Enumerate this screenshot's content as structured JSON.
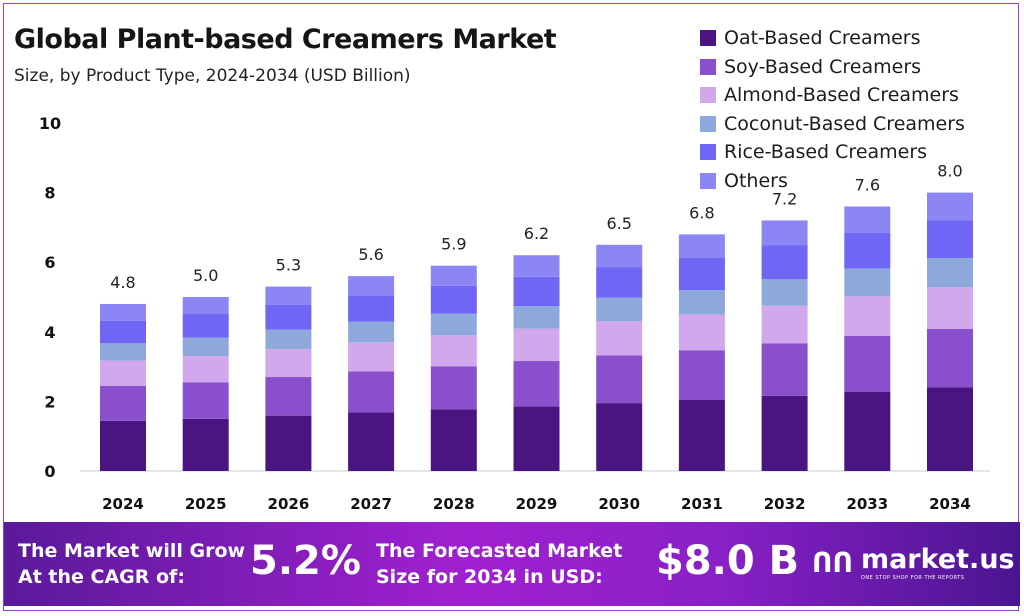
{
  "chart_data": {
    "type": "bar",
    "stacked": true,
    "title": "Global Plant-based Creamers Market",
    "subtitle": "Size, by Product Type, 2024-2034 (USD Billion)",
    "xlabel": "",
    "ylabel": "",
    "ylim": [
      0,
      10
    ],
    "yticks": [
      0,
      2,
      4,
      6,
      8,
      10
    ],
    "grid": false,
    "legend_position": "top-right",
    "categories": [
      "2024",
      "2025",
      "2026",
      "2027",
      "2028",
      "2029",
      "2030",
      "2031",
      "2032",
      "2033",
      "2034"
    ],
    "totals": [
      "4.8",
      "5.0",
      "5.3",
      "5.6",
      "5.9",
      "6.2",
      "6.5",
      "6.8",
      "7.2",
      "7.6",
      "8.0"
    ],
    "series": [
      {
        "name": "Oat-Based Creamers",
        "color": "#4a1580",
        "values": [
          1.44,
          1.5,
          1.59,
          1.68,
          1.77,
          1.86,
          1.95,
          2.04,
          2.16,
          2.28,
          2.4
        ]
      },
      {
        "name": "Soy-Based Creamers",
        "color": "#8a4fcc",
        "values": [
          1.01,
          1.05,
          1.11,
          1.18,
          1.24,
          1.3,
          1.37,
          1.43,
          1.51,
          1.6,
          1.68
        ]
      },
      {
        "name": "Almond-Based Creamers",
        "color": "#d2a8ec",
        "values": [
          0.72,
          0.75,
          0.8,
          0.84,
          0.89,
          0.93,
          0.98,
          1.02,
          1.08,
          1.14,
          1.2
        ]
      },
      {
        "name": "Coconut-Based Creamers",
        "color": "#8fa8dc",
        "values": [
          0.5,
          0.53,
          0.56,
          0.59,
          0.62,
          0.65,
          0.68,
          0.71,
          0.76,
          0.8,
          0.84
        ]
      },
      {
        "name": "Rice-Based Creamers",
        "color": "#7066f5",
        "values": [
          0.65,
          0.68,
          0.72,
          0.76,
          0.8,
          0.84,
          0.88,
          0.92,
          0.97,
          1.03,
          1.08
        ]
      },
      {
        "name": "Others",
        "color": "#8b86f3",
        "values": [
          0.48,
          0.49,
          0.52,
          0.55,
          0.58,
          0.62,
          0.64,
          0.68,
          0.72,
          0.75,
          0.8
        ]
      }
    ]
  },
  "footer": {
    "cagr_label_1": "The Market will Grow",
    "cagr_label_2": "At the CAGR of:",
    "cagr_value": "5.2%",
    "forecast_label_1": "The Forecasted Market",
    "forecast_label_2": "Size for 2034 in USD:",
    "forecast_value": "$8.0 B",
    "brand": "market.us",
    "brand_tagline": "ONE STOP SHOP FOR THE REPORTS"
  }
}
